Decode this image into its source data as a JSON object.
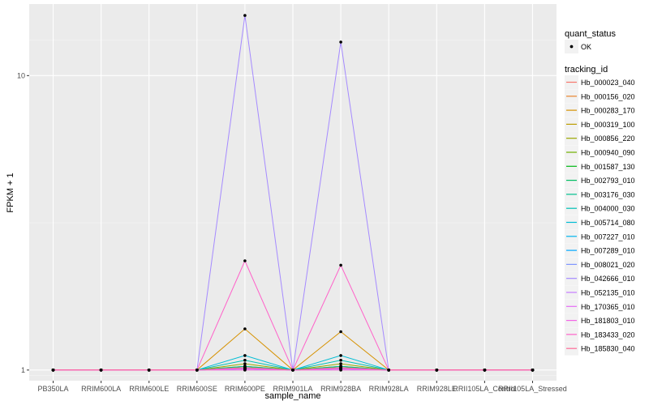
{
  "chart_data": {
    "type": "line",
    "xlabel": "sample_name",
    "ylabel": "FPKM + 1",
    "y_scale": "log10",
    "ylim": [
      0.92,
      17.5
    ],
    "y_ticks": [
      1,
      10
    ],
    "categories": [
      "PB350LA",
      "RRIM600LA",
      "RRIM600LE",
      "RRIM600SE",
      "RRIM600PE",
      "RRIM901LA",
      "RRIM928BA",
      "RRIM928LA",
      "RRIM928LE",
      "RRII105LA_Control",
      "RRII105LA_Stressed"
    ],
    "legend_quant": {
      "title": "quant_status",
      "entries": [
        "OK"
      ]
    },
    "legend_tracking": {
      "title": "tracking_id"
    },
    "series": [
      {
        "name": "Hb_000023_040",
        "color": "#F8766D",
        "values": [
          1,
          1,
          1,
          1,
          1.0,
          1,
          1.0,
          1,
          1,
          1,
          1
        ]
      },
      {
        "name": "Hb_000156_020",
        "color": "#E9842C",
        "values": [
          1,
          1,
          1,
          1,
          1.01,
          1,
          1.01,
          1,
          1,
          1,
          1
        ]
      },
      {
        "name": "Hb_000283_170",
        "color": "#D69100",
        "values": [
          1,
          1,
          1,
          1,
          1.38,
          1,
          1.35,
          1,
          1,
          1,
          1
        ]
      },
      {
        "name": "Hb_000319_100",
        "color": "#BC9D00",
        "values": [
          1,
          1,
          1,
          1,
          1.02,
          1,
          1.02,
          1,
          1,
          1,
          1
        ]
      },
      {
        "name": "Hb_000856_220",
        "color": "#9CA700",
        "values": [
          1,
          1,
          1,
          1,
          1.05,
          1,
          1.05,
          1,
          1,
          1,
          1
        ]
      },
      {
        "name": "Hb_000940_090",
        "color": "#6FB000",
        "values": [
          1,
          1,
          1,
          1,
          1.03,
          1,
          1.03,
          1,
          1,
          1,
          1
        ]
      },
      {
        "name": "Hb_001587_130",
        "color": "#00B813",
        "values": [
          1,
          1,
          1,
          1,
          1.01,
          1,
          1.01,
          1,
          1,
          1,
          1
        ]
      },
      {
        "name": "Hb_002793_010",
        "color": "#00BD61",
        "values": [
          1,
          1,
          1,
          1,
          1.02,
          1,
          1.02,
          1,
          1,
          1,
          1
        ]
      },
      {
        "name": "Hb_003176_030",
        "color": "#00C08E",
        "values": [
          1,
          1,
          1,
          1,
          1.03,
          1,
          1.03,
          1,
          1,
          1,
          1
        ]
      },
      {
        "name": "Hb_004000_030",
        "color": "#00C0B4",
        "values": [
          1,
          1,
          1,
          1,
          1.08,
          1,
          1.08,
          1,
          1,
          1,
          1
        ]
      },
      {
        "name": "Hb_005714_080",
        "color": "#00BDD4",
        "values": [
          1,
          1,
          1,
          1,
          1.12,
          1,
          1.12,
          1,
          1,
          1,
          1
        ]
      },
      {
        "name": "Hb_007227_010",
        "color": "#00B5EE",
        "values": [
          1,
          1,
          1,
          1,
          1.01,
          1,
          1.01,
          1,
          1,
          1,
          1
        ]
      },
      {
        "name": "Hb_007289_010",
        "color": "#00A7FF",
        "values": [
          1,
          1,
          1,
          1,
          1.01,
          1,
          1.01,
          1,
          1,
          1,
          1
        ]
      },
      {
        "name": "Hb_008021_020",
        "color": "#7F96FF",
        "values": [
          1,
          1,
          1,
          1,
          1.01,
          1,
          1.01,
          1,
          1,
          1,
          1
        ]
      },
      {
        "name": "Hb_042666_010",
        "color": "#A58AFF",
        "values": [
          1,
          1,
          1,
          1,
          16.0,
          1,
          13.0,
          1,
          1,
          1,
          1
        ]
      },
      {
        "name": "Hb_052135_010",
        "color": "#C77CFF",
        "values": [
          1,
          1,
          1,
          1,
          1.01,
          1,
          1.01,
          1,
          1,
          1,
          1
        ]
      },
      {
        "name": "Hb_170365_010",
        "color": "#E46DF6",
        "values": [
          1,
          1,
          1,
          1,
          1.0,
          1,
          1.0,
          1,
          1,
          1,
          1
        ]
      },
      {
        "name": "Hb_181803_010",
        "color": "#F365E6",
        "values": [
          1,
          1,
          1,
          1,
          1.01,
          1,
          1.01,
          1,
          1,
          1,
          1
        ]
      },
      {
        "name": "Hb_183433_020",
        "color": "#FF61C9",
        "values": [
          1,
          1,
          1,
          1,
          2.35,
          1,
          2.27,
          1,
          1,
          1,
          1
        ]
      },
      {
        "name": "Hb_185830_040",
        "color": "#FF6A98",
        "values": [
          1,
          1,
          1,
          1,
          1.02,
          1,
          1.02,
          1,
          1,
          1,
          1
        ]
      }
    ],
    "grid": true,
    "legend_placement": "right"
  }
}
